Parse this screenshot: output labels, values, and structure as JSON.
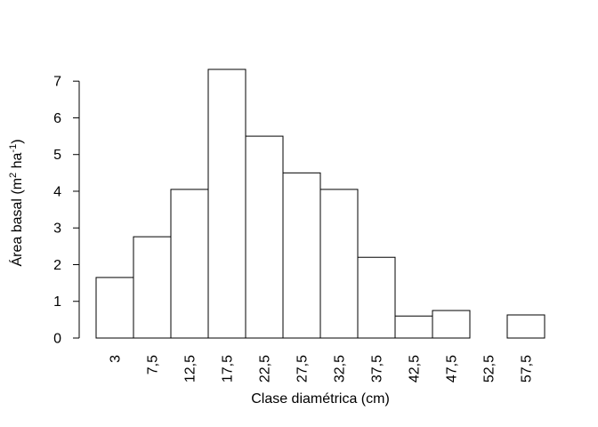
{
  "chart_data": {
    "type": "bar",
    "title": "",
    "xlabel": "Clase diamétrica (cm)",
    "ylabel": {
      "prefix": "Área basal (m",
      "exp1": "2",
      "middle": " ha",
      "exp2": "-1",
      "suffix": ")"
    },
    "categories": [
      "3",
      "7,5",
      "12,5",
      "17,5",
      "22,5",
      "27,5",
      "32,5",
      "37,5",
      "42,5",
      "47,5",
      "52,5",
      "57,5"
    ],
    "values": [
      1.65,
      2.76,
      4.05,
      7.32,
      5.5,
      4.5,
      4.05,
      2.2,
      0.6,
      0.75,
      0,
      0.63
    ],
    "y_ticks": [
      0,
      1,
      2,
      3,
      4,
      5,
      6,
      7
    ],
    "ylim": [
      0,
      7.32
    ],
    "grid": false,
    "bar_fill": "#ffffff",
    "bar_stroke": "#000000"
  }
}
